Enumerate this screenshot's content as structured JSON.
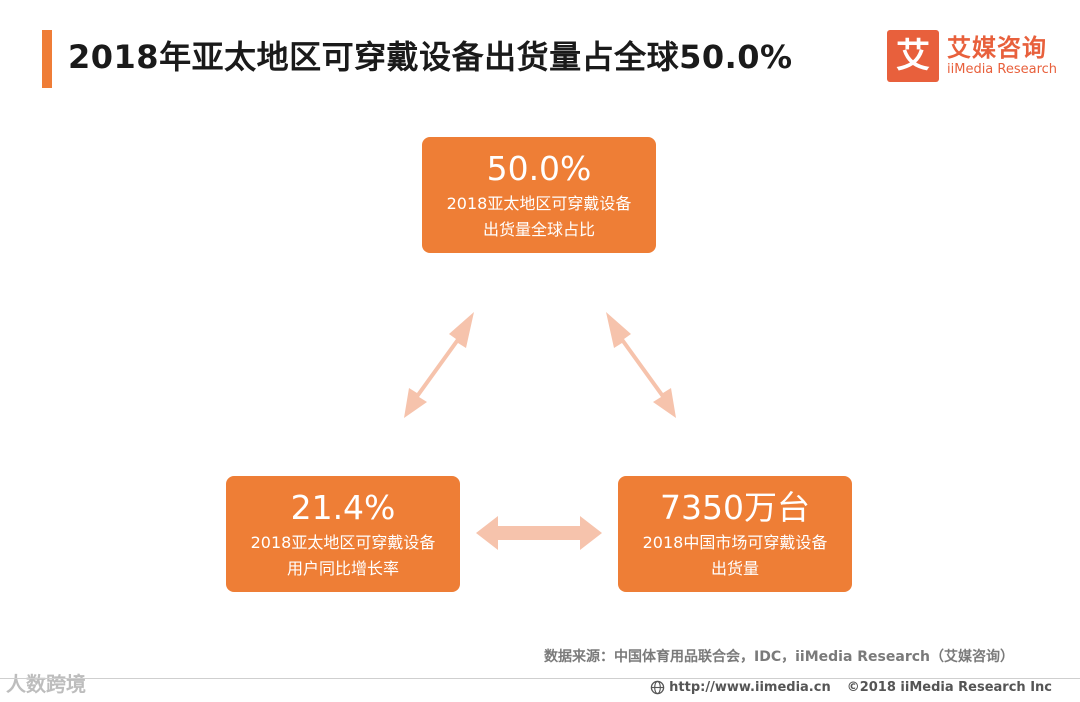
{
  "header": {
    "title": "2018年亚太地区可穿戴设备出货量占全球50.0%"
  },
  "logo": {
    "mark": "艾",
    "name_cn": "艾媒咨询",
    "name_en": "iiMedia Research"
  },
  "cards": {
    "top": {
      "value": "50.0%",
      "label_line1": "2018亚太地区可穿戴设备",
      "label_line2": "出货量全球占比"
    },
    "left": {
      "value": "21.4%",
      "label_line1": "2018亚太地区可穿戴设备",
      "label_line2": "用户同比增长率"
    },
    "right": {
      "value": "7350万台",
      "label_line1": "2018中国市场可穿戴设备",
      "label_line2": "出货量"
    }
  },
  "colors": {
    "card": "#ee7e36",
    "arrow": "#f6c3ac",
    "accent": "#ef7d37",
    "logo": "#e8603c"
  },
  "source": "数据来源：中国体育用品联合会，IDC，iiMedia Research（艾媒咨询）",
  "footer": {
    "url": "http://www.iimedia.cn",
    "copyright": "©2018  iiMedia Research  Inc"
  },
  "watermark": "人数跨境"
}
